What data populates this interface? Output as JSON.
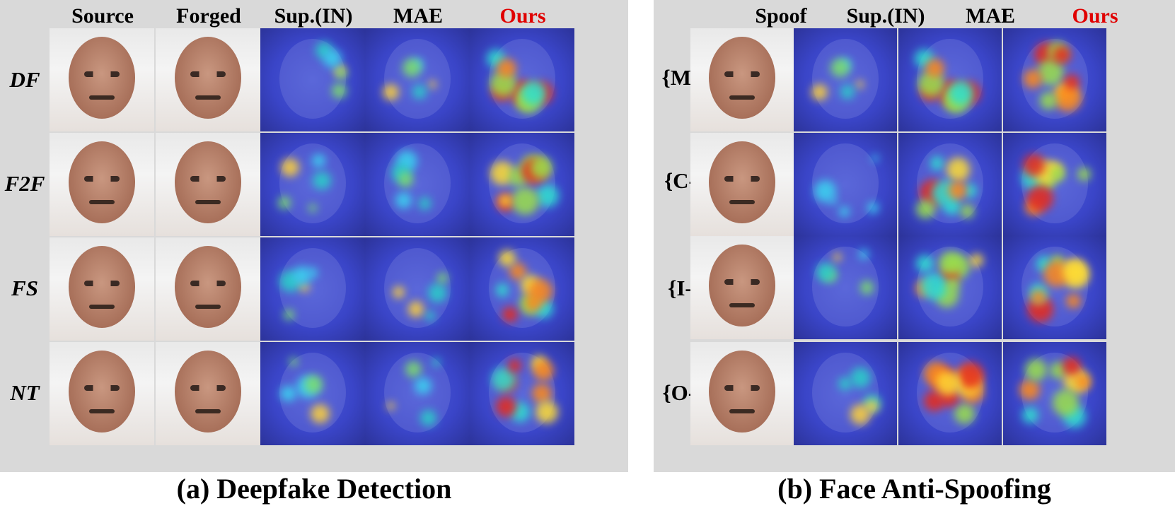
{
  "panel_a": {
    "caption": "(a) Deepfake Detection",
    "columns": [
      "Source",
      "Forged",
      "Sup.(IN)",
      "MAE",
      "Ours"
    ],
    "rows": [
      "DF",
      "F2F",
      "FS",
      "NT"
    ]
  },
  "panel_b": {
    "caption": "(b) Face Anti-Spoofing",
    "columns": [
      "Spoof",
      "Sup.(IN)",
      "MAE",
      "Ours"
    ],
    "rows": [
      "{M-P}",
      "{C-P}",
      "{I-P}",
      "{O-R}"
    ]
  },
  "colors": {
    "highlight": "#e00000",
    "panel_bg": "#d9d9d9",
    "heat_base": "#3a45c8"
  }
}
